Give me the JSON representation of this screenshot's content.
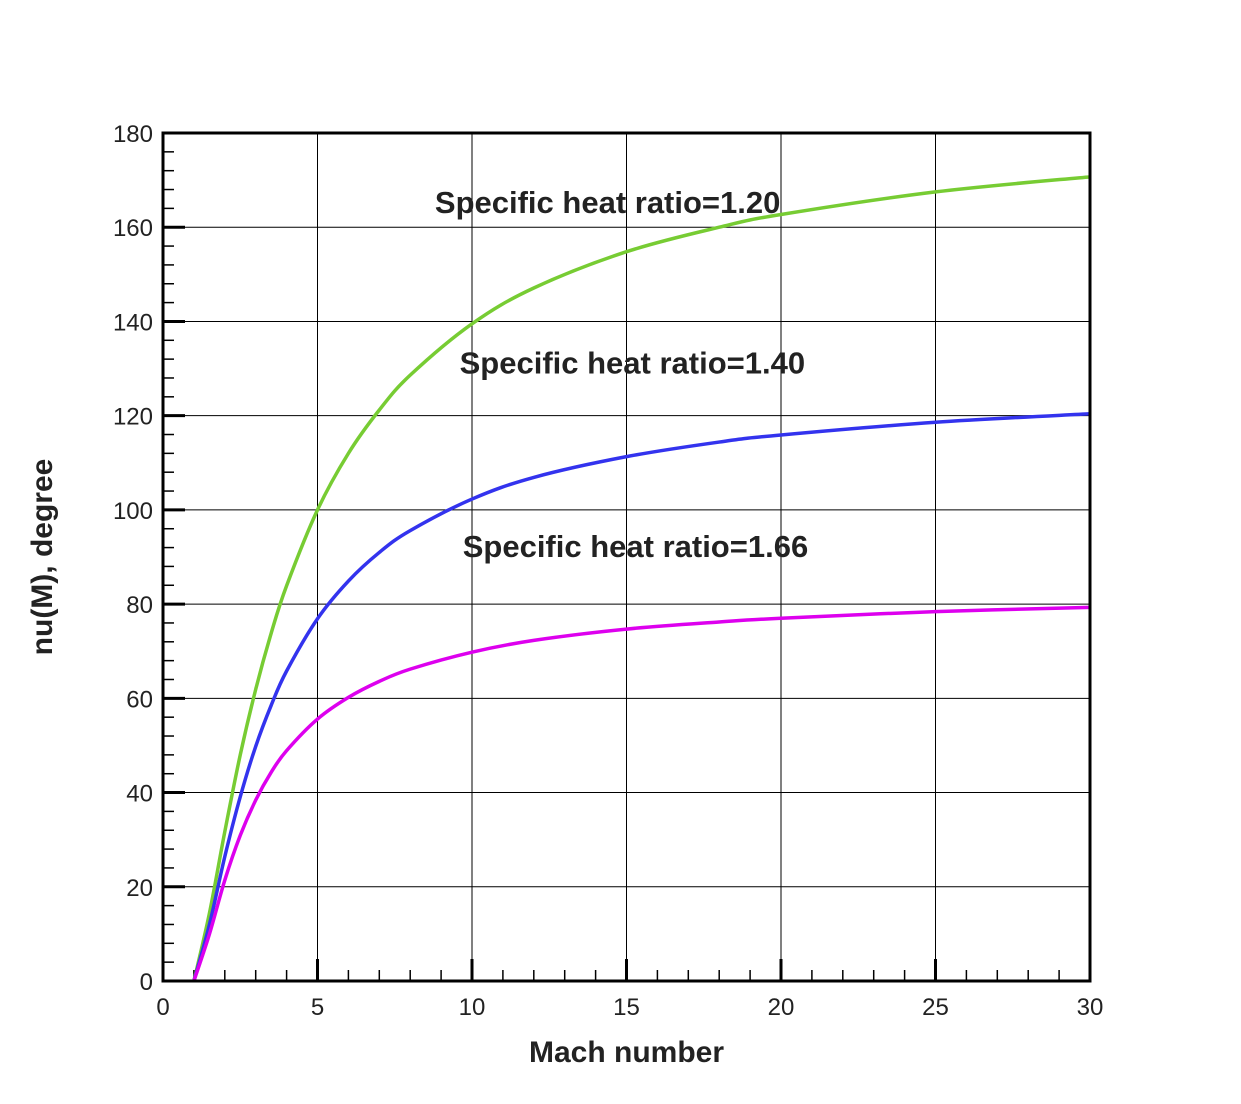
{
  "chart_data": {
    "type": "line",
    "title": "",
    "xlabel": "Mach number",
    "ylabel": "nu(M), degree",
    "xlim": [
      0,
      30
    ],
    "ylim": [
      0,
      180
    ],
    "x_ticks": [
      0,
      5,
      10,
      15,
      20,
      25,
      30
    ],
    "y_ticks": [
      0,
      20,
      40,
      60,
      80,
      100,
      120,
      140,
      160,
      180
    ],
    "x_tick_labels": [
      "0",
      "5",
      "10",
      "15",
      "20",
      "25",
      "30"
    ],
    "y_tick_labels": [
      "0",
      "20",
      "40",
      "60",
      "80",
      "100",
      "120",
      "140",
      "160",
      "180"
    ],
    "grid": true,
    "legend": "none",
    "x": [
      1,
      1.5,
      2,
      2.5,
      3,
      3.5,
      4,
      5,
      6,
      7,
      8,
      10,
      12,
      15,
      18,
      20,
      25,
      30
    ],
    "series": [
      {
        "gamma": 1.2,
        "color": "#77cc33",
        "values": [
          0,
          14.3,
          31.7,
          48.0,
          61.9,
          73.8,
          83.9,
          100.0,
          112.0,
          121.2,
          128.6,
          139.5,
          147.1,
          154.8,
          160.0,
          162.7,
          167.5,
          170.7
        ]
      },
      {
        "gamma": 1.4,
        "color": "#3333ee",
        "values": [
          0,
          11.9,
          26.4,
          39.1,
          49.8,
          58.5,
          65.8,
          76.9,
          84.9,
          90.97,
          95.6,
          102.3,
          106.9,
          111.3,
          114.4,
          115.9,
          118.6,
          120.4
        ]
      },
      {
        "gamma": 1.66,
        "color": "#dd00ee",
        "values": [
          0,
          9.9,
          21.4,
          30.9,
          38.4,
          44.3,
          48.9,
          55.6,
          60.2,
          63.6,
          66.2,
          69.8,
          72.3,
          74.7,
          76.2,
          77.0,
          78.4,
          79.3
        ]
      }
    ],
    "annotations": [
      {
        "text": "Specific heat ratio=1.20",
        "x": 8.8,
        "y": 163
      },
      {
        "text": "Specific heat ratio=1.40",
        "x": 9.6,
        "y": 129
      },
      {
        "text": "Specific heat ratio=1.66",
        "x": 9.7,
        "y": 90
      }
    ]
  }
}
